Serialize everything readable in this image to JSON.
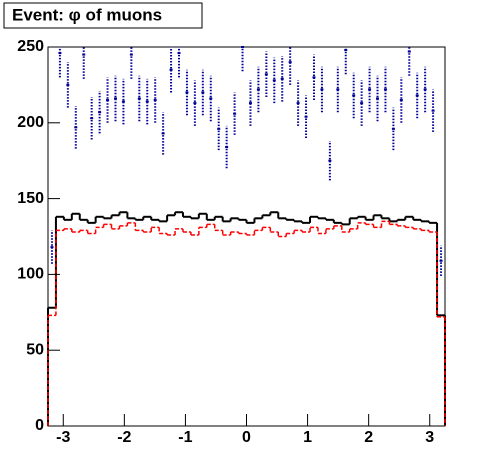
{
  "chart_data": {
    "type": "histogram",
    "title": "Event: φ of muons",
    "bins": [
      -3.25,
      -3.12,
      -2.99,
      -2.86,
      -2.73,
      -2.6,
      -2.47,
      -2.34,
      -2.21,
      -2.08,
      -1.95,
      -1.82,
      -1.69,
      -1.56,
      -1.43,
      -1.3,
      -1.17,
      -1.04,
      -0.91,
      -0.78,
      -0.65,
      -0.52,
      -0.39,
      -0.26,
      -0.13,
      0,
      0.13,
      0.26,
      0.39,
      0.52,
      0.65,
      0.78,
      0.91,
      1.04,
      1.17,
      1.3,
      1.43,
      1.56,
      1.69,
      1.82,
      1.95,
      2.08,
      2.21,
      2.34,
      2.47,
      2.6,
      2.73,
      2.86,
      2.99,
      3.12,
      3.25
    ],
    "xlim": [
      -3.25,
      3.25
    ],
    "xticks": [
      -3,
      -2,
      -1,
      0,
      1,
      2,
      3
    ],
    "ylim": [
      0,
      250
    ],
    "yticks": [
      0,
      50,
      100,
      150,
      200,
      250
    ],
    "series": [
      {
        "color": "#000000",
        "style": "solid",
        "values": [
          78,
          138,
          136,
          140,
          136,
          134,
          138,
          137,
          139,
          141,
          137,
          136,
          138,
          136,
          135,
          139,
          141,
          138,
          137,
          140,
          136,
          138,
          135,
          137,
          136,
          134,
          137,
          139,
          141,
          137,
          136,
          135,
          134,
          138,
          137,
          136,
          134,
          133,
          137,
          138,
          136,
          139,
          137,
          135,
          136,
          138,
          136,
          135,
          134,
          73
        ]
      },
      {
        "color": "#ff0000",
        "style": "dashed",
        "values": [
          73,
          129,
          130,
          128,
          129,
          127,
          131,
          133,
          130,
          132,
          134,
          129,
          128,
          131,
          127,
          126,
          130,
          128,
          126,
          131,
          133,
          129,
          126,
          128,
          127,
          126,
          129,
          131,
          128,
          125,
          127,
          129,
          128,
          131,
          127,
          130,
          132,
          128,
          130,
          134,
          133,
          131,
          135,
          133,
          132,
          131,
          130,
          129,
          128,
          72
        ]
      },
      {
        "color": "#000099",
        "style": "points",
        "values": [
          118,
          246,
          225,
          197,
          245,
          203,
          207,
          215,
          216,
          214,
          245,
          216,
          214,
          215,
          193,
          235,
          246,
          220,
          213,
          220,
          216,
          196,
          184,
          206,
          250,
          213,
          222,
          232,
          228,
          229,
          240,
          213,
          204,
          230,
          222,
          175,
          222,
          248,
          218,
          213,
          222,
          216,
          222,
          196,
          215,
          247,
          218,
          222,
          208,
          109
        ],
        "errors": [
          11,
          16,
          15,
          14,
          16,
          14,
          14,
          15,
          15,
          15,
          16,
          15,
          15,
          15,
          14,
          15,
          16,
          15,
          15,
          15,
          15,
          14,
          14,
          14,
          16,
          15,
          15,
          15,
          15,
          15,
          15,
          15,
          14,
          15,
          15,
          13,
          15,
          16,
          15,
          15,
          15,
          15,
          15,
          14,
          15,
          16,
          15,
          15,
          14,
          10
        ]
      }
    ]
  }
}
